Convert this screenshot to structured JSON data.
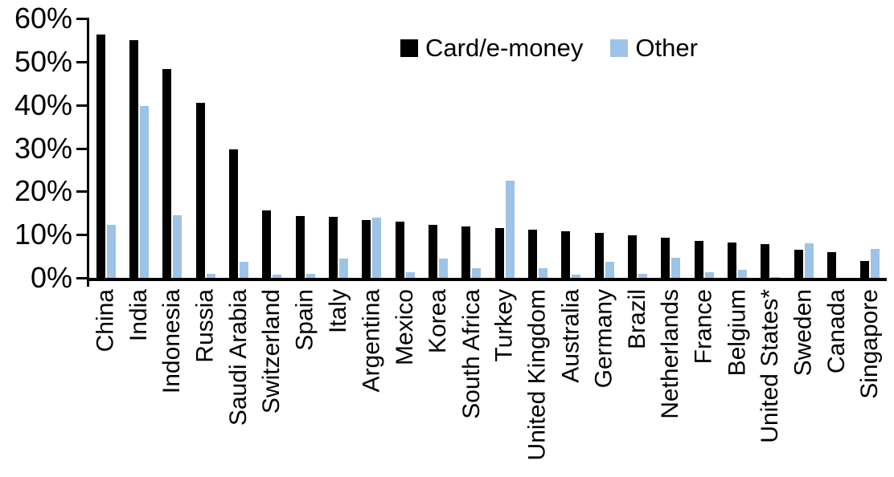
{
  "chart_data": {
    "type": "bar",
    "title": "",
    "xlabel": "",
    "ylabel": "",
    "ylim": [
      0,
      60
    ],
    "ytick_step": 10,
    "yticks": [
      "0%",
      "10%",
      "20%",
      "30%",
      "40%",
      "50%",
      "60%"
    ],
    "grid": false,
    "legend_position": "top-center",
    "categories": [
      "China",
      "India",
      "Indonesia",
      "Russia",
      "Saudi Arabia",
      "Switzerland",
      "Spain",
      "Italy",
      "Argentina",
      "Mexico",
      "Korea",
      "South Africa",
      "Turkey",
      "United Kingdom",
      "Australia",
      "Germany",
      "Brazil",
      "Netherlands",
      "France",
      "Belgium",
      "United States*",
      "Sweden",
      "Canada",
      "Singapore"
    ],
    "series": [
      {
        "name": "Card/e-money",
        "color": "#000000",
        "values": [
          56.3,
          55.0,
          48.3,
          40.5,
          29.8,
          15.6,
          14.3,
          14.1,
          13.4,
          13.0,
          12.3,
          11.8,
          11.6,
          11.1,
          10.8,
          10.4,
          9.9,
          9.2,
          8.6,
          8.1,
          7.8,
          6.5,
          5.9,
          3.9
        ]
      },
      {
        "name": "Other",
        "color": "#9DC3E6",
        "values": [
          12.3,
          39.7,
          14.5,
          1.0,
          3.8,
          0.7,
          0.9,
          4.4,
          13.9,
          1.3,
          4.5,
          2.3,
          22.5,
          2.2,
          0.8,
          3.8,
          1.0,
          4.6,
          1.3,
          1.9,
          0.2,
          7.9,
          0,
          6.6
        ]
      }
    ]
  },
  "colors": {
    "card_emoney": "#000000",
    "other": "#9DC3E6",
    "axis": "#000000",
    "background": "#ffffff"
  }
}
